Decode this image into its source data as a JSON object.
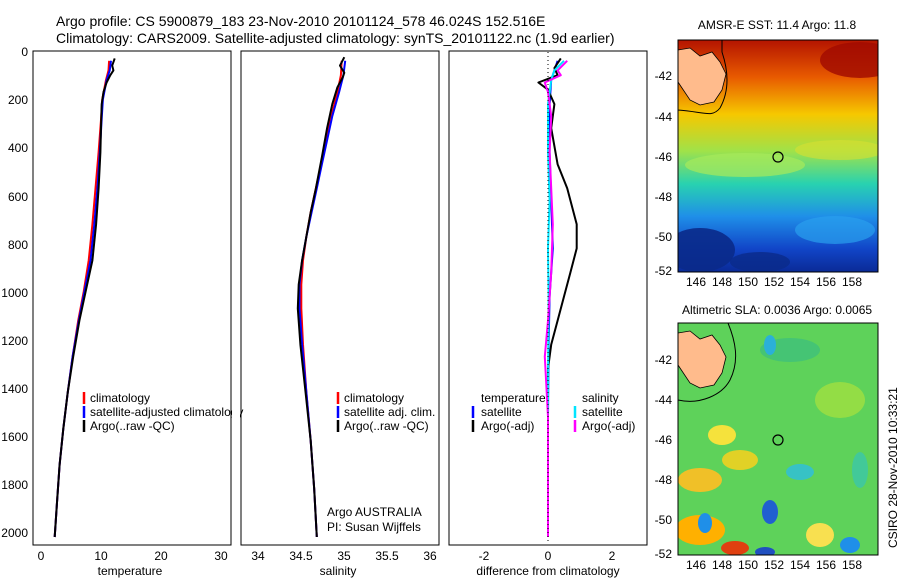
{
  "header": {
    "line1": "Argo profile: CS 5900879_183 23-Nov-2010 20101124_578 46.024S 152.516E",
    "line2": "Climatology: CARS2009. Satellite-adjusted climatology: synTS_20101122.nc (1.9d earlier)"
  },
  "credits": {
    "argo_group": "Argo AUSTRALIA",
    "pi": "PI: Susan Wijffels",
    "side": "CSIRO 28-Nov-2010 10:33:21"
  },
  "colors": {
    "climatology": "#ff0000",
    "satellite": "#0000ff",
    "argo": "#000000",
    "sat_sal": "#00e5ff",
    "argo_sal": "#ff00ff",
    "land": "#ffbb8c"
  },
  "chart_data": [
    {
      "type": "line",
      "panel": "temperature",
      "xlabel": "temperature",
      "ylabel": "",
      "xlim": [
        -1,
        31
      ],
      "ylim": [
        2050,
        0
      ],
      "xticks": [
        "0",
        "10",
        "20",
        "30"
      ],
      "yticks": [
        "0",
        "200",
        "400",
        "600",
        "800",
        "1000",
        "1200",
        "1400",
        "1600",
        "1800",
        "2000"
      ],
      "legend": [
        "climatology",
        "satellite-adjusted climatology",
        "Argo(..raw -QC)"
      ],
      "series": [
        {
          "name": "climatology",
          "color": "#ff0000",
          "points": [
            [
              11.3,
              20
            ],
            [
              11.2,
              60
            ],
            [
              10.8,
              100
            ],
            [
              10.2,
              180
            ],
            [
              10.0,
              260
            ],
            [
              9.6,
              400
            ],
            [
              9.1,
              550
            ],
            [
              8.6,
              700
            ],
            [
              8.0,
              850
            ],
            [
              7.2,
              980
            ],
            [
              6.3,
              1100
            ],
            [
              5.4,
              1250
            ],
            [
              4.6,
              1400
            ],
            [
              3.9,
              1550
            ],
            [
              3.3,
              1700
            ],
            [
              2.9,
              1850
            ],
            [
              2.5,
              2000
            ]
          ]
        },
        {
          "name": "satellite-adjusted climatology",
          "color": "#0000ff",
          "points": [
            [
              11.6,
              20
            ],
            [
              11.4,
              60
            ],
            [
              10.9,
              100
            ],
            [
              10.3,
              180
            ],
            [
              10.1,
              260
            ],
            [
              9.8,
              400
            ],
            [
              9.4,
              550
            ],
            [
              8.9,
              700
            ],
            [
              8.3,
              850
            ],
            [
              7.3,
              980
            ],
            [
              6.4,
              1100
            ],
            [
              5.4,
              1250
            ],
            [
              4.6,
              1400
            ],
            [
              3.9,
              1550
            ],
            [
              3.3,
              1700
            ],
            [
              2.9,
              1850
            ],
            [
              2.5,
              2000
            ]
          ]
        },
        {
          "name": "Argo(..raw -QC)",
          "color": "#000000",
          "points": [
            [
              12.2,
              10
            ],
            [
              11.8,
              40
            ],
            [
              12.0,
              60
            ],
            [
              11.5,
              80
            ],
            [
              10.9,
              110
            ],
            [
              10.4,
              150
            ],
            [
              10.1,
              200
            ],
            [
              10.0,
              280
            ],
            [
              9.9,
              400
            ],
            [
              9.6,
              550
            ],
            [
              9.2,
              700
            ],
            [
              8.6,
              850
            ],
            [
              7.5,
              980
            ],
            [
              6.5,
              1100
            ],
            [
              5.5,
              1250
            ],
            [
              4.6,
              1400
            ],
            [
              3.9,
              1550
            ],
            [
              3.3,
              1700
            ],
            [
              2.9,
              1850
            ],
            [
              2.5,
              2000
            ]
          ]
        }
      ]
    },
    {
      "type": "line",
      "panel": "salinity",
      "xlabel": "salinity",
      "ylabel": "",
      "xlim": [
        33.8,
        36.1
      ],
      "ylim": [
        2050,
        0
      ],
      "xticks": [
        "34",
        "34.5",
        "35",
        "35.5",
        "36"
      ],
      "legend": [
        "climatology",
        "satellite adj. clim.",
        "Argo(..raw -QC)"
      ],
      "series": [
        {
          "name": "climatology",
          "color": "#ff0000",
          "points": [
            [
              34.97,
              20
            ],
            [
              34.96,
              80
            ],
            [
              34.92,
              150
            ],
            [
              34.85,
              250
            ],
            [
              34.79,
              350
            ],
            [
              34.73,
              450
            ],
            [
              34.67,
              550
            ],
            [
              34.61,
              650
            ],
            [
              34.56,
              750
            ],
            [
              34.52,
              850
            ],
            [
              34.5,
              950
            ],
            [
              34.5,
              1050
            ],
            [
              34.52,
              1200
            ],
            [
              34.56,
              1400
            ],
            [
              34.61,
              1600
            ],
            [
              34.65,
              1800
            ],
            [
              34.68,
              2000
            ]
          ]
        },
        {
          "name": "satellite adj. clim.",
          "color": "#0000ff",
          "points": [
            [
              35.01,
              20
            ],
            [
              34.99,
              80
            ],
            [
              34.94,
              150
            ],
            [
              34.86,
              250
            ],
            [
              34.8,
              350
            ],
            [
              34.74,
              450
            ],
            [
              34.68,
              550
            ],
            [
              34.62,
              650
            ],
            [
              34.56,
              750
            ],
            [
              34.51,
              850
            ],
            [
              34.48,
              950
            ],
            [
              34.48,
              1050
            ],
            [
              34.51,
              1200
            ],
            [
              34.56,
              1400
            ],
            [
              34.61,
              1600
            ],
            [
              34.65,
              1800
            ],
            [
              34.68,
              2000
            ]
          ]
        },
        {
          "name": "Argo(..raw -QC)",
          "color": "#000000",
          "points": [
            [
              35.0,
              5
            ],
            [
              34.95,
              40
            ],
            [
              35.0,
              70
            ],
            [
              34.98,
              90
            ],
            [
              34.92,
              130
            ],
            [
              34.86,
              200
            ],
            [
              34.8,
              300
            ],
            [
              34.74,
              420
            ],
            [
              34.67,
              550
            ],
            [
              34.61,
              650
            ],
            [
              34.56,
              750
            ],
            [
              34.51,
              850
            ],
            [
              34.47,
              950
            ],
            [
              34.46,
              1050
            ],
            [
              34.49,
              1200
            ],
            [
              34.55,
              1400
            ],
            [
              34.61,
              1600
            ],
            [
              34.65,
              1800
            ],
            [
              34.68,
              2000
            ]
          ]
        }
      ]
    },
    {
      "type": "line",
      "panel": "difference",
      "xlabel": "difference from climatology",
      "ylabel": "",
      "xlim": [
        -3.1,
        3.1
      ],
      "ylim": [
        2050,
        0
      ],
      "xticks": [
        "-2",
        "0",
        "2"
      ],
      "legend_left_title": "temperature",
      "legend_right_title": "salinity",
      "legend_left": [
        "satellite",
        "Argo(-adj)"
      ],
      "legend_right": [
        "satellite",
        "Argo(-adj)"
      ],
      "series": [
        {
          "name": "temperature satellite",
          "color": "#0000ff",
          "points": [
            [
              0.3,
              20
            ],
            [
              0.2,
              60
            ],
            [
              0.1,
              100
            ],
            [
              0.05,
              200
            ],
            [
              0.05,
              400
            ],
            [
              0.1,
              600
            ],
            [
              0.15,
              800
            ],
            [
              0.05,
              1000
            ],
            [
              0.02,
              1200
            ],
            [
              0.0,
              1500
            ],
            [
              0.0,
              2000
            ]
          ]
        },
        {
          "name": "temperature Argo(-adj)",
          "color": "#000000",
          "points": [
            [
              0.4,
              10
            ],
            [
              0.2,
              50
            ],
            [
              0.3,
              80
            ],
            [
              -0.3,
              110
            ],
            [
              0.0,
              140
            ],
            [
              0.2,
              200
            ],
            [
              0.1,
              300
            ],
            [
              0.3,
              450
            ],
            [
              0.6,
              550
            ],
            [
              0.9,
              700
            ],
            [
              0.9,
              800
            ],
            [
              0.7,
              900
            ],
            [
              0.5,
              1000
            ],
            [
              0.3,
              1100
            ],
            [
              0.1,
              1200
            ],
            [
              0.0,
              1300
            ],
            [
              0.0,
              2000
            ]
          ]
        },
        {
          "name": "salinity satellite",
          "color": "#00e5ff",
          "points": [
            [
              0.5,
              20
            ],
            [
              0.2,
              60
            ],
            [
              0.1,
              100
            ],
            [
              0.0,
              200
            ],
            [
              0.0,
              400
            ],
            [
              0.05,
              600
            ],
            [
              0.0,
              800
            ],
            [
              0.02,
              1000
            ],
            [
              0.0,
              1400
            ],
            [
              0.0,
              2000
            ]
          ]
        },
        {
          "name": "salinity Argo(-adj)",
          "color": "#ff00ff",
          "points": [
            [
              0.6,
              20
            ],
            [
              0.3,
              60
            ],
            [
              0.4,
              80
            ],
            [
              -0.1,
              110
            ],
            [
              0.0,
              150
            ],
            [
              0.1,
              250
            ],
            [
              0.05,
              400
            ],
            [
              0.15,
              700
            ],
            [
              0.1,
              900
            ],
            [
              0.0,
              1100
            ],
            [
              -0.1,
              1250
            ],
            [
              0.0,
              1500
            ],
            [
              0.0,
              2000
            ]
          ]
        }
      ]
    },
    {
      "type": "heatmap",
      "panel": "sst",
      "title": "AMSR-E SST: 11.4 Argo: 11.8",
      "xticks": [
        "146",
        "148",
        "150",
        "152",
        "154",
        "156",
        "158"
      ],
      "yticks": [
        "-42",
        "-44",
        "-46",
        "-48",
        "-50",
        "-52"
      ],
      "xlim": [
        144.5,
        159.5
      ],
      "ylim": [
        -52,
        -40.5
      ],
      "argo_position": [
        152.5,
        -46.0
      ]
    },
    {
      "type": "heatmap",
      "panel": "sla",
      "title": "Altimetric SLA: 0.0036 Argo: 0.0065",
      "xticks": [
        "146",
        "148",
        "150",
        "152",
        "154",
        "156",
        "158"
      ],
      "yticks": [
        "-42",
        "-44",
        "-46",
        "-48",
        "-50",
        "-52"
      ],
      "xlim": [
        144.5,
        159.5
      ],
      "ylim": [
        -52,
        -40.5
      ],
      "argo_position": [
        152.5,
        -46.0
      ]
    }
  ]
}
